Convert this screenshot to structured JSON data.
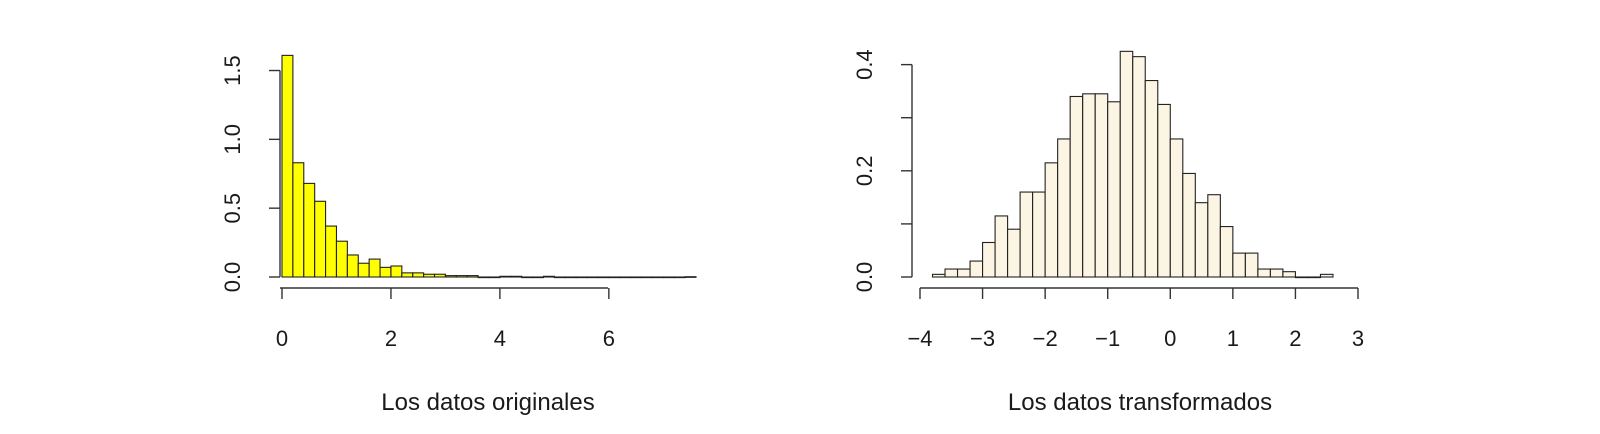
{
  "chart_data": [
    {
      "type": "bar",
      "xlabel": "Los datos originales",
      "ylabel": "",
      "xlim": [
        0,
        7.6
      ],
      "ylim": [
        0,
        1.62
      ],
      "xticks": [
        0,
        2,
        4,
        6
      ],
      "xtick_labels": [
        "0",
        "2",
        "4",
        "6"
      ],
      "yticks": [
        0.0,
        0.5,
        1.0,
        1.5
      ],
      "ytick_labels": [
        "0.0",
        "0.5",
        "1.0",
        "1.5"
      ],
      "grid": false,
      "bin_width": 0.2,
      "bin_start": 0,
      "values": [
        1.61,
        0.83,
        0.68,
        0.55,
        0.37,
        0.26,
        0.16,
        0.1,
        0.13,
        0.07,
        0.08,
        0.03,
        0.03,
        0.02,
        0.02,
        0.01,
        0.01,
        0.01,
        0.0,
        0.0,
        0.005,
        0.005,
        0.0,
        0.0,
        0.005,
        0.0,
        0.0,
        0.0,
        0.0,
        0.0,
        0.0,
        0.0,
        0.0,
        0.0,
        0.0,
        0.0,
        0.0,
        0.002
      ],
      "bar_color": "#ffff00"
    },
    {
      "type": "bar",
      "xlabel": "Los datos transformados",
      "ylabel": "",
      "xlim": [
        -4,
        3
      ],
      "ylim": [
        0,
        0.42
      ],
      "xticks": [
        -4,
        -3,
        -2,
        -1,
        0,
        1,
        2,
        3
      ],
      "xtick_labels": [
        "−4",
        "−3",
        "−2",
        "−1",
        "0",
        "1",
        "2",
        "3"
      ],
      "yticks": [
        0.0,
        0.1,
        0.2,
        0.3,
        0.4
      ],
      "ytick_labels": [
        "0.0",
        "",
        "0.2",
        "",
        "0.4"
      ],
      "grid": false,
      "bin_width": 0.2,
      "bin_start": -3.8,
      "values": [
        0.005,
        0.015,
        0.015,
        0.03,
        0.065,
        0.115,
        0.09,
        0.16,
        0.16,
        0.215,
        0.26,
        0.34,
        0.345,
        0.345,
        0.33,
        0.425,
        0.415,
        0.37,
        0.325,
        0.26,
        0.195,
        0.14,
        0.155,
        0.095,
        0.045,
        0.045,
        0.015,
        0.015,
        0.01,
        0.0,
        0.0,
        0.005
      ],
      "bar_color": "#fdf5e3"
    }
  ]
}
